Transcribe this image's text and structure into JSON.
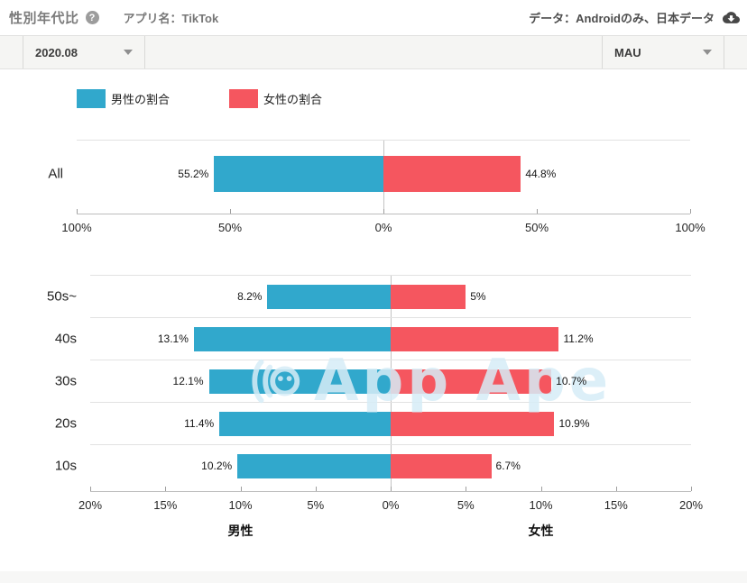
{
  "header": {
    "title": "性別年代比",
    "app_label": "アプリ名：TikTok",
    "data_scope": "データ：Androidのみ、日本データ"
  },
  "icons": {
    "help": "?",
    "cloud_download": "cloud-download-icon",
    "chevron": "chevron-down"
  },
  "toolbar": {
    "period": "2020.08",
    "metric": "MAU"
  },
  "legend": {
    "male": "男性の割合",
    "female": "女性の割合"
  },
  "colors": {
    "male": "#31a8cc",
    "female": "#f5565f",
    "watermark": "#d7edf7"
  },
  "watermark": "App Ape",
  "chart_data": [
    {
      "type": "bar",
      "orientation": "diverging-horizontal",
      "title": "All",
      "categories": [
        "All"
      ],
      "series": [
        {
          "name": "男性の割合",
          "values": [
            55.2
          ],
          "labels": [
            "55.2%"
          ]
        },
        {
          "name": "女性の割合",
          "values": [
            44.8
          ],
          "labels": [
            "44.8%"
          ]
        }
      ],
      "axis_max": 100,
      "tick_labels": [
        "100%",
        "50%",
        "0%",
        "50%",
        "100%"
      ],
      "legend_position": "top",
      "grid": "center-line-only"
    },
    {
      "type": "bar",
      "orientation": "diverging-horizontal",
      "title": "Age breakdown",
      "categories": [
        "50s~",
        "40s",
        "30s",
        "20s",
        "10s"
      ],
      "series": [
        {
          "name": "男性の割合",
          "values": [
            8.2,
            13.1,
            12.1,
            11.4,
            10.2
          ],
          "labels": [
            "8.2%",
            "13.1%",
            "12.1%",
            "11.4%",
            "10.2%"
          ]
        },
        {
          "name": "女性の割合",
          "values": [
            5,
            11.2,
            10.7,
            10.9,
            6.7
          ],
          "labels": [
            "5%",
            "11.2%",
            "10.7%",
            "10.9%",
            "6.7%"
          ]
        }
      ],
      "axis_max": 20,
      "tick_labels": [
        "20%",
        "15%",
        "10%",
        "5%",
        "0%",
        "5%",
        "10%",
        "15%",
        "20%"
      ],
      "xlabel_left": "男性",
      "xlabel_right": "女性",
      "grid": "row-separators"
    }
  ]
}
